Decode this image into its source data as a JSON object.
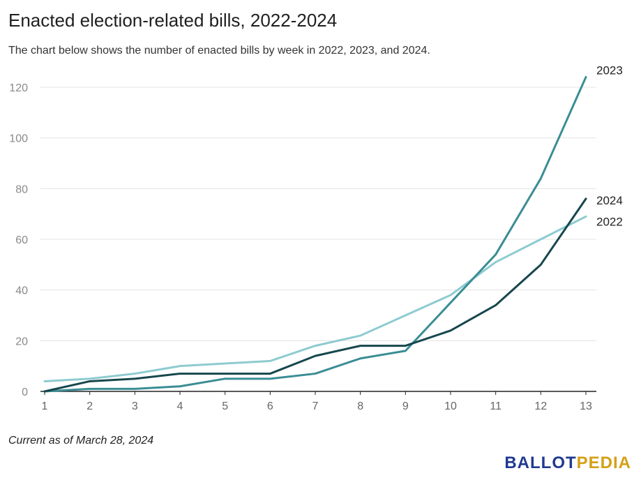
{
  "chart_data": {
    "type": "line",
    "title": "Enacted election-related bills, 2022-2024",
    "subtitle": "The chart below shows the number of enacted bills by week in 2022, 2023, and 2024.",
    "xlabel": "",
    "ylabel": "",
    "x": [
      1,
      2,
      3,
      4,
      5,
      6,
      7,
      8,
      9,
      10,
      11,
      12,
      13
    ],
    "ylim": [
      0,
      130
    ],
    "yticks": [
      0,
      20,
      40,
      60,
      80,
      100,
      120
    ],
    "grid": true,
    "legend": "line-end labels",
    "series": [
      {
        "name": "2023",
        "color": "#3a8d94",
        "values": [
          0,
          1,
          1,
          2,
          5,
          5,
          7,
          13,
          16,
          35,
          54,
          84,
          124
        ]
      },
      {
        "name": "2024",
        "color": "#17474d",
        "values": [
          0,
          4,
          5,
          7,
          7,
          7,
          14,
          18,
          18,
          24,
          34,
          50,
          76
        ]
      },
      {
        "name": "2022",
        "color": "#8ecbd0",
        "values": [
          4,
          5,
          7,
          10,
          11,
          12,
          18,
          22,
          30,
          38,
          51,
          60,
          69
        ]
      }
    ]
  },
  "note": "Current as of March 28, 2024",
  "logo": {
    "part1": "BALLOT",
    "part2": "PEDIA"
  }
}
